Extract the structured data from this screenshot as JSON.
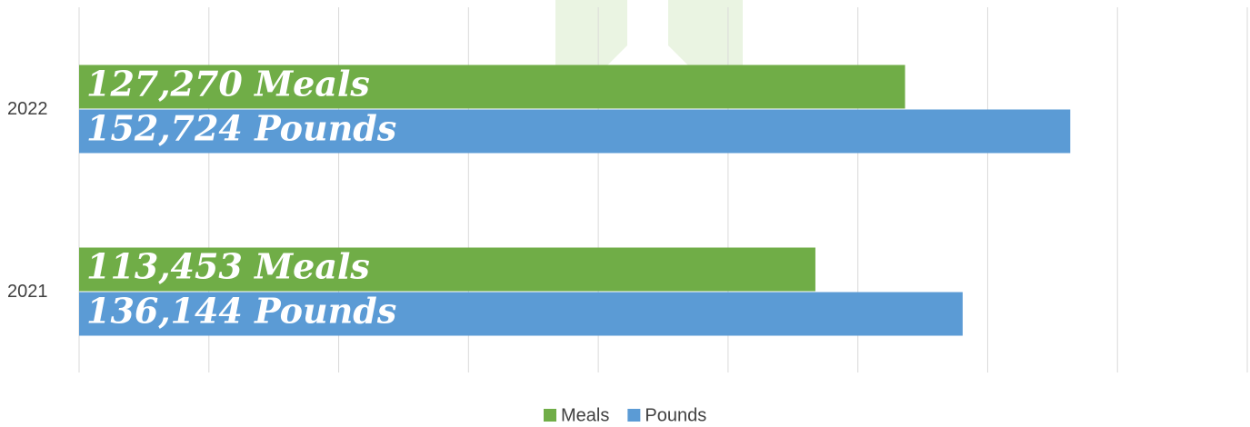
{
  "chart_data": {
    "type": "bar",
    "orientation": "horizontal",
    "categories": [
      "2022",
      "2021"
    ],
    "series": [
      {
        "name": "Meals",
        "color": "#70ad47",
        "values": [
          127270,
          113453
        ],
        "value_labels": [
          "127,270 Meals",
          "113,453 Meals"
        ]
      },
      {
        "name": "Pounds",
        "color": "#5b9bd5",
        "values": [
          152724,
          136144
        ],
        "value_labels": [
          "152,724 Pounds",
          "136,144 Pounds"
        ]
      }
    ],
    "xlim": [
      0,
      180000
    ],
    "xticks": [
      0,
      20000,
      40000,
      60000,
      80000,
      100000,
      120000,
      140000,
      160000,
      180000
    ],
    "grid": true,
    "legend": "bottom"
  }
}
